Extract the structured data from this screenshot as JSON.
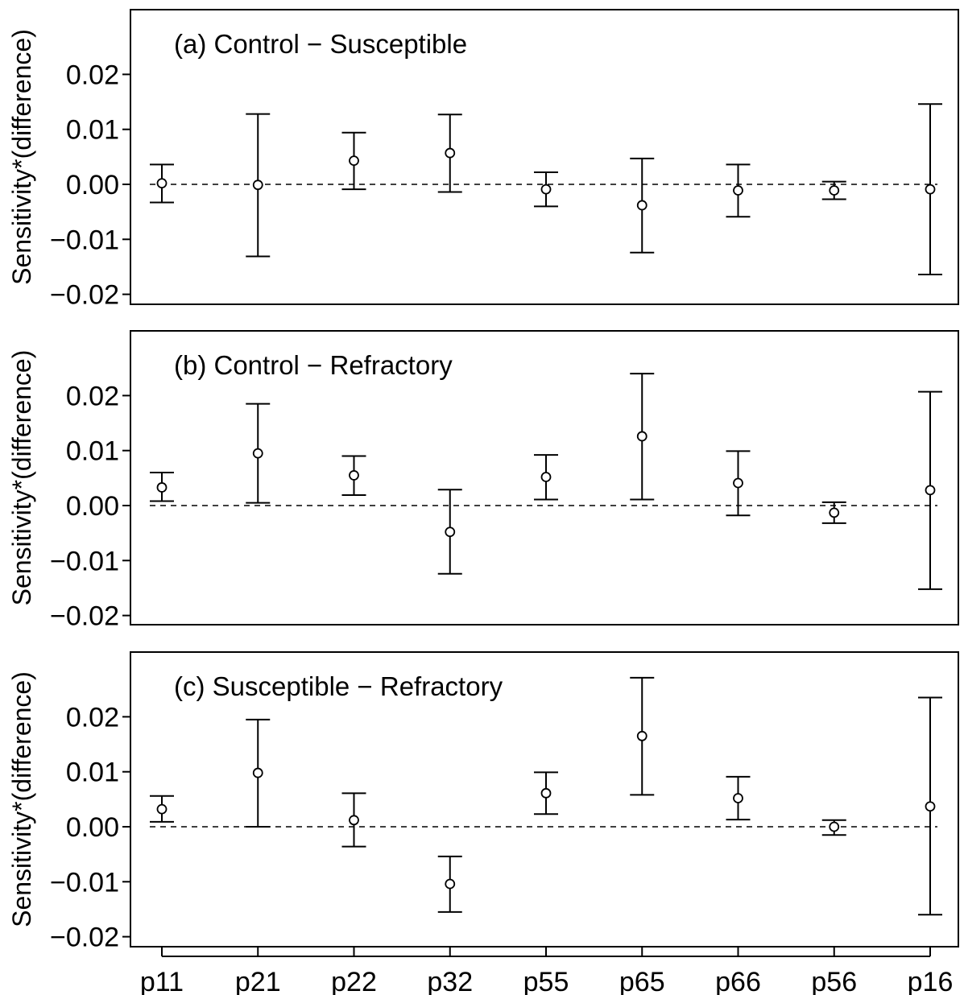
{
  "chart_data": {
    "type": "errorbar",
    "x_categories": [
      "p11",
      "p21",
      "p22",
      "p32",
      "p55",
      "p65",
      "p66",
      "p56",
      "p16"
    ],
    "ylabel": "Sensitivity*(difference)",
    "yticks": [
      "0.02",
      "0.01",
      "0.00",
      "−0.01",
      "−0.02"
    ],
    "ytick_values": [
      0.02,
      0.01,
      0.0,
      -0.01,
      -0.02
    ],
    "ylim": [
      -0.022,
      0.032
    ],
    "reference_line": 0.0,
    "panels": [
      {
        "title": "(a) Control − Susceptible",
        "estimate": [
          0.0002,
          -0.0001,
          0.0043,
          0.0057,
          -0.0009,
          -0.0038,
          -0.0011,
          -0.0011,
          -0.0009
        ],
        "lower": [
          -0.0033,
          -0.0131,
          -0.0009,
          -0.0014,
          -0.004,
          -0.0124,
          -0.0059,
          -0.0027,
          -0.0164
        ],
        "upper": [
          0.0036,
          0.0128,
          0.0094,
          0.0127,
          0.0022,
          0.0047,
          0.0036,
          0.0005,
          0.0146
        ]
      },
      {
        "title": "(b) Control − Refractory",
        "estimate": [
          0.0033,
          0.0095,
          0.0055,
          -0.0048,
          0.0052,
          0.0126,
          0.0041,
          -0.0013,
          0.0028
        ],
        "lower": [
          0.0008,
          0.0005,
          0.0019,
          -0.0124,
          0.0011,
          0.0011,
          -0.0018,
          -0.0032,
          -0.0152
        ],
        "upper": [
          0.006,
          0.0185,
          0.009,
          0.0029,
          0.0092,
          0.024,
          0.0099,
          0.0006,
          0.0207
        ]
      },
      {
        "title": "(c) Susceptible − Refractory",
        "estimate": [
          0.0032,
          0.0098,
          0.0012,
          -0.0104,
          0.0061,
          0.0165,
          0.0052,
          0.0,
          0.0037
        ],
        "lower": [
          0.0009,
          0.0,
          -0.0036,
          -0.0155,
          0.0023,
          0.0058,
          0.0013,
          -0.0015,
          -0.016
        ],
        "upper": [
          0.0056,
          0.0195,
          0.0061,
          -0.0054,
          0.0099,
          0.0271,
          0.0091,
          0.0012,
          0.0235
        ]
      }
    ]
  }
}
